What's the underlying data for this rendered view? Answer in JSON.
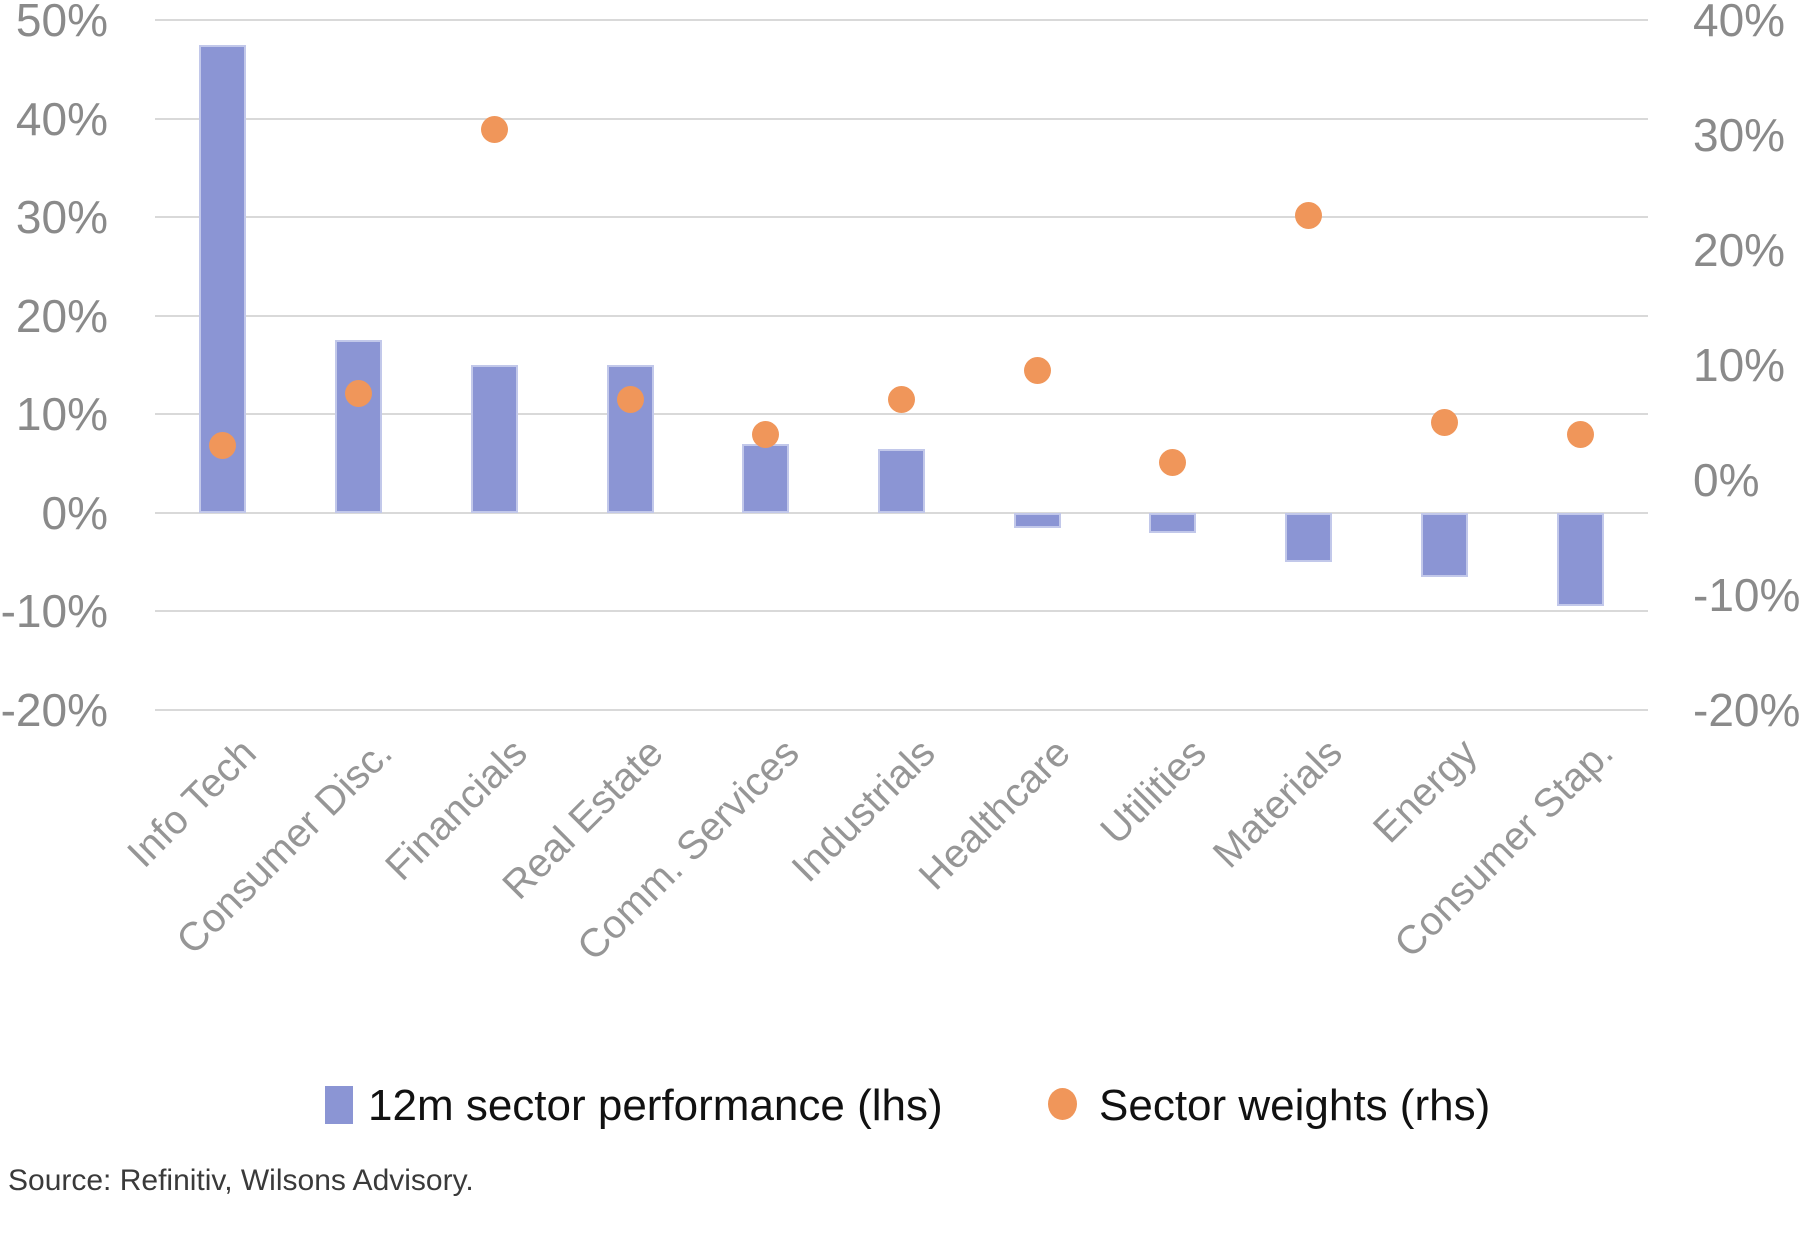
{
  "chart_data": {
    "type": "bar",
    "subtype": "combo-bar-and-scatter-dual-axis",
    "categories": [
      "Info Tech",
      "Consumer Disc.",
      "Financials",
      "Real Estate",
      "Comm. Services",
      "Industrials",
      "Healthcare",
      "Utilities",
      "Materials",
      "Energy",
      "Consumer Stap."
    ],
    "series": [
      {
        "name": "12m sector performance (lhs)",
        "type": "bar",
        "axis": "left",
        "color": "#8B95D4",
        "values": [
          47.5,
          17.5,
          15,
          15,
          7,
          6.5,
          -1.5,
          -2,
          -5,
          -6.5,
          -9.5
        ]
      },
      {
        "name": "Sector weights (rhs)",
        "type": "scatter",
        "axis": "right",
        "color": "#F0965A",
        "values": [
          3,
          7.5,
          30.5,
          7,
          4,
          7,
          9.5,
          1.5,
          23,
          5,
          4
        ]
      }
    ],
    "title": "",
    "xlabel": "",
    "ylabel": "",
    "left_axis": {
      "min": -20,
      "max": 50,
      "tick_labels": [
        "50%",
        "40%",
        "30%",
        "20%",
        "10%",
        "0%",
        "-10%",
        "-20%"
      ]
    },
    "right_axis": {
      "min": -20,
      "max": 40,
      "tick_labels": [
        "40%",
        "30%",
        "20%",
        "10%",
        "0%",
        "-10%",
        "-20%"
      ]
    },
    "grid": true,
    "legend_position": "bottom"
  },
  "legend": {
    "bar_label": "12m sector performance (lhs)",
    "dot_label": "Sector weights (rhs)"
  },
  "source_note": "Source: Refinitiv, Wilsons Advisory.",
  "colors": {
    "bar": "#8B95D4",
    "dot": "#F0965A",
    "gridline": "#d9d9d9",
    "axis_text": "#8a8a8a",
    "category_text": "#969696"
  }
}
